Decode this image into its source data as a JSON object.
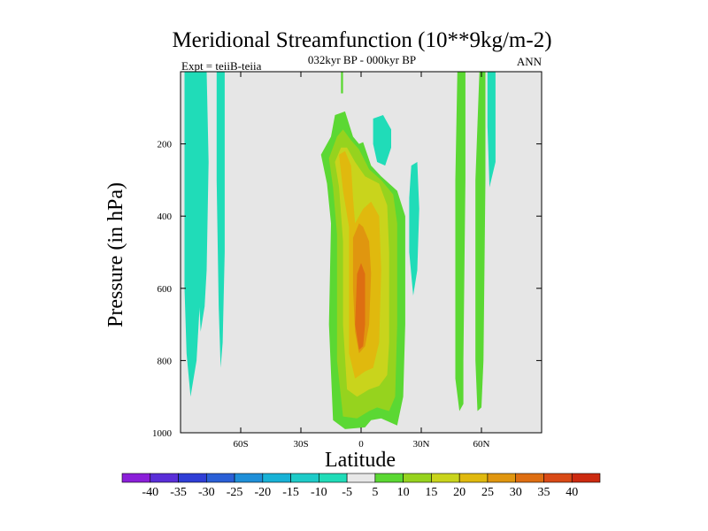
{
  "chart_data": {
    "type": "heatmap",
    "title": "Meridional Streamfunction (10**9kg/m-2)",
    "subtitle": "032kyr BP - 000kyr BP",
    "left_label": "Expt = teiiB-teiia",
    "right_label": "ANN",
    "xlabel": "Latitude",
    "ylabel": "Pressure (in hPa)",
    "xlim": [
      -90,
      90
    ],
    "ylim": [
      0,
      1000
    ],
    "y_inverted": true,
    "x_ticks": [
      {
        "value": -60,
        "label": "60S"
      },
      {
        "value": -30,
        "label": "30S"
      },
      {
        "value": 0,
        "label": "0"
      },
      {
        "value": 30,
        "label": "30N"
      },
      {
        "value": 60,
        "label": "60N"
      }
    ],
    "y_ticks": [
      {
        "value": 200,
        "label": "200"
      },
      {
        "value": 400,
        "label": "400"
      },
      {
        "value": 600,
        "label": "600"
      },
      {
        "value": 800,
        "label": "800"
      },
      {
        "value": 1000,
        "label": "1000"
      }
    ],
    "colorbar": {
      "levels": [
        -40,
        -35,
        -30,
        -25,
        -20,
        -15,
        -10,
        -5,
        5,
        10,
        15,
        20,
        25,
        30,
        35,
        40
      ],
      "labels": [
        "-40",
        "-35",
        "-30",
        "-25",
        "-20",
        "-15",
        "-10",
        "-5",
        "5",
        "10",
        "15",
        "20",
        "25",
        "30",
        "35",
        "40"
      ],
      "colors": [
        "#8b1fd9",
        "#5a2ed8",
        "#2f3ed6",
        "#2a5fd6",
        "#1f8fd8",
        "#18b2d6",
        "#1ecbc8",
        "#20dcb8",
        "#e8e8e8",
        "#5bd833",
        "#96d31e",
        "#c9d41c",
        "#e0b90e",
        "#e0960f",
        "#de6e12",
        "#d94a16",
        "#cc2a10"
      ]
    },
    "background": "#e6e6e6",
    "regions": [
      {
        "value": -7,
        "label": "-5 to -10",
        "poly": [
          [
            -88,
            0
          ],
          [
            -80,
            0
          ],
          [
            -78,
            300
          ],
          [
            -80,
            600
          ],
          [
            -82,
            800
          ],
          [
            -85,
            900
          ],
          [
            -87,
            780
          ],
          [
            -88,
            600
          ]
        ]
      },
      {
        "value": -10,
        "label": "-10 to -15",
        "poly": [
          [
            -82,
            0
          ],
          [
            -77,
            0
          ],
          [
            -76,
            250
          ],
          [
            -77,
            550
          ],
          [
            -78,
            650
          ],
          [
            -80,
            720
          ],
          [
            -81,
            600
          ],
          [
            -82,
            300
          ]
        ]
      },
      {
        "value": -7,
        "label": "-5 to -10",
        "poly": [
          [
            -72,
            0
          ],
          [
            -68,
            0
          ],
          [
            -68,
            500
          ],
          [
            -69,
            750
          ],
          [
            -70,
            820
          ],
          [
            -71,
            650
          ],
          [
            -72,
            300
          ]
        ]
      },
      {
        "value": -7,
        "label": "-5 to -10",
        "poly": [
          [
            6,
            130
          ],
          [
            11,
            120
          ],
          [
            15,
            160
          ],
          [
            15,
            210
          ],
          [
            12,
            260
          ],
          [
            8,
            250
          ],
          [
            6,
            200
          ]
        ]
      },
      {
        "value": -7,
        "label": "-5 to -10",
        "poly": [
          [
            25,
            260
          ],
          [
            28,
            250
          ],
          [
            29,
            380
          ],
          [
            28,
            550
          ],
          [
            26,
            620
          ],
          [
            24,
            500
          ],
          [
            24,
            350
          ]
        ]
      },
      {
        "value": -7,
        "label": "-5 to -10",
        "poly": [
          [
            63,
            0
          ],
          [
            67,
            0
          ],
          [
            67,
            250
          ],
          [
            64,
            320
          ],
          [
            63,
            150
          ]
        ]
      },
      {
        "value": 6,
        "label": "5 to 10",
        "poly": [
          [
            -10,
            0
          ],
          [
            -9,
            0
          ],
          [
            -9,
            60
          ],
          [
            -10,
            60
          ]
        ]
      },
      {
        "value": 6,
        "label": "5 to 10",
        "poly": [
          [
            -20,
            230
          ],
          [
            -15,
            180
          ],
          [
            -13,
            120
          ],
          [
            -8,
            110
          ],
          [
            -4,
            180
          ],
          [
            -1,
            200
          ],
          [
            1,
            195
          ],
          [
            5,
            260
          ],
          [
            10,
            290
          ],
          [
            18,
            330
          ],
          [
            22,
            400
          ],
          [
            22,
            700
          ],
          [
            21,
            900
          ],
          [
            18,
            980
          ],
          [
            10,
            960
          ],
          [
            5,
            965
          ],
          [
            2,
            985
          ],
          [
            -8,
            990
          ],
          [
            -14,
            965
          ],
          [
            -16,
            700
          ],
          [
            -15,
            420
          ],
          [
            -17,
            310
          ]
        ]
      },
      {
        "value": 6,
        "label": "5 to 10",
        "poly": [
          [
            48,
            0
          ],
          [
            52,
            0
          ],
          [
            52,
            300
          ],
          [
            51,
            800
          ],
          [
            51,
            920
          ],
          [
            49,
            940
          ],
          [
            47,
            850
          ],
          [
            47,
            300
          ]
        ]
      },
      {
        "value": 6,
        "label": "5 to 10",
        "poly": [
          [
            59,
            0
          ],
          [
            62,
            0
          ],
          [
            62,
            300
          ],
          [
            61,
            800
          ],
          [
            60,
            930
          ],
          [
            58,
            940
          ],
          [
            57,
            800
          ],
          [
            57,
            300
          ]
        ]
      },
      {
        "value": 12,
        "label": "10 to 15",
        "poly": [
          [
            -16,
            240
          ],
          [
            -12,
            180
          ],
          [
            -9,
            160
          ],
          [
            -5,
            190
          ],
          [
            -1,
            215
          ],
          [
            4,
            270
          ],
          [
            10,
            300
          ],
          [
            16,
            340
          ],
          [
            18,
            420
          ],
          [
            18,
            700
          ],
          [
            17,
            900
          ],
          [
            14,
            940
          ],
          [
            8,
            930
          ],
          [
            4,
            940
          ],
          [
            -2,
            960
          ],
          [
            -9,
            955
          ],
          [
            -12,
            800
          ],
          [
            -12,
            450
          ],
          [
            -14,
            320
          ]
        ]
      },
      {
        "value": 17,
        "label": "15 to 20",
        "poly": [
          [
            -13,
            250
          ],
          [
            -10,
            210
          ],
          [
            -7,
            210
          ],
          [
            -3,
            250
          ],
          [
            2,
            290
          ],
          [
            9,
            310
          ],
          [
            13,
            370
          ],
          [
            14,
            500
          ],
          [
            14,
            750
          ],
          [
            13,
            840
          ],
          [
            9,
            870
          ],
          [
            4,
            880
          ],
          [
            -2,
            900
          ],
          [
            -7,
            880
          ],
          [
            -9,
            700
          ],
          [
            -9,
            470
          ],
          [
            -11,
            320
          ]
        ]
      },
      {
        "value": 22,
        "label": "20 to 25",
        "poly": [
          [
            -11,
            230
          ],
          [
            -8,
            220
          ],
          [
            -5,
            260
          ],
          [
            -4,
            350
          ],
          [
            -3,
            420
          ],
          [
            1,
            380
          ],
          [
            5,
            360
          ],
          [
            9,
            400
          ],
          [
            10,
            550
          ],
          [
            9,
            750
          ],
          [
            6,
            820
          ],
          [
            2,
            830
          ],
          [
            -3,
            850
          ],
          [
            -6,
            780
          ],
          [
            -6,
            560
          ],
          [
            -6,
            430
          ],
          [
            -9,
            330
          ]
        ]
      },
      {
        "value": 27,
        "label": "25 to 30",
        "poly": [
          [
            -4,
            460
          ],
          [
            -1,
            420
          ],
          [
            1,
            430
          ],
          [
            4,
            470
          ],
          [
            5,
            560
          ],
          [
            4,
            700
          ],
          [
            2,
            760
          ],
          [
            -1,
            780
          ],
          [
            -3,
            720
          ],
          [
            -4,
            600
          ]
        ]
      },
      {
        "value": 32,
        "label": "30 to 35",
        "poly": [
          [
            -2,
            560
          ],
          [
            0,
            530
          ],
          [
            2,
            560
          ],
          [
            2,
            700
          ],
          [
            1,
            760
          ],
          [
            -1,
            770
          ],
          [
            -3,
            700
          ]
        ]
      }
    ]
  }
}
